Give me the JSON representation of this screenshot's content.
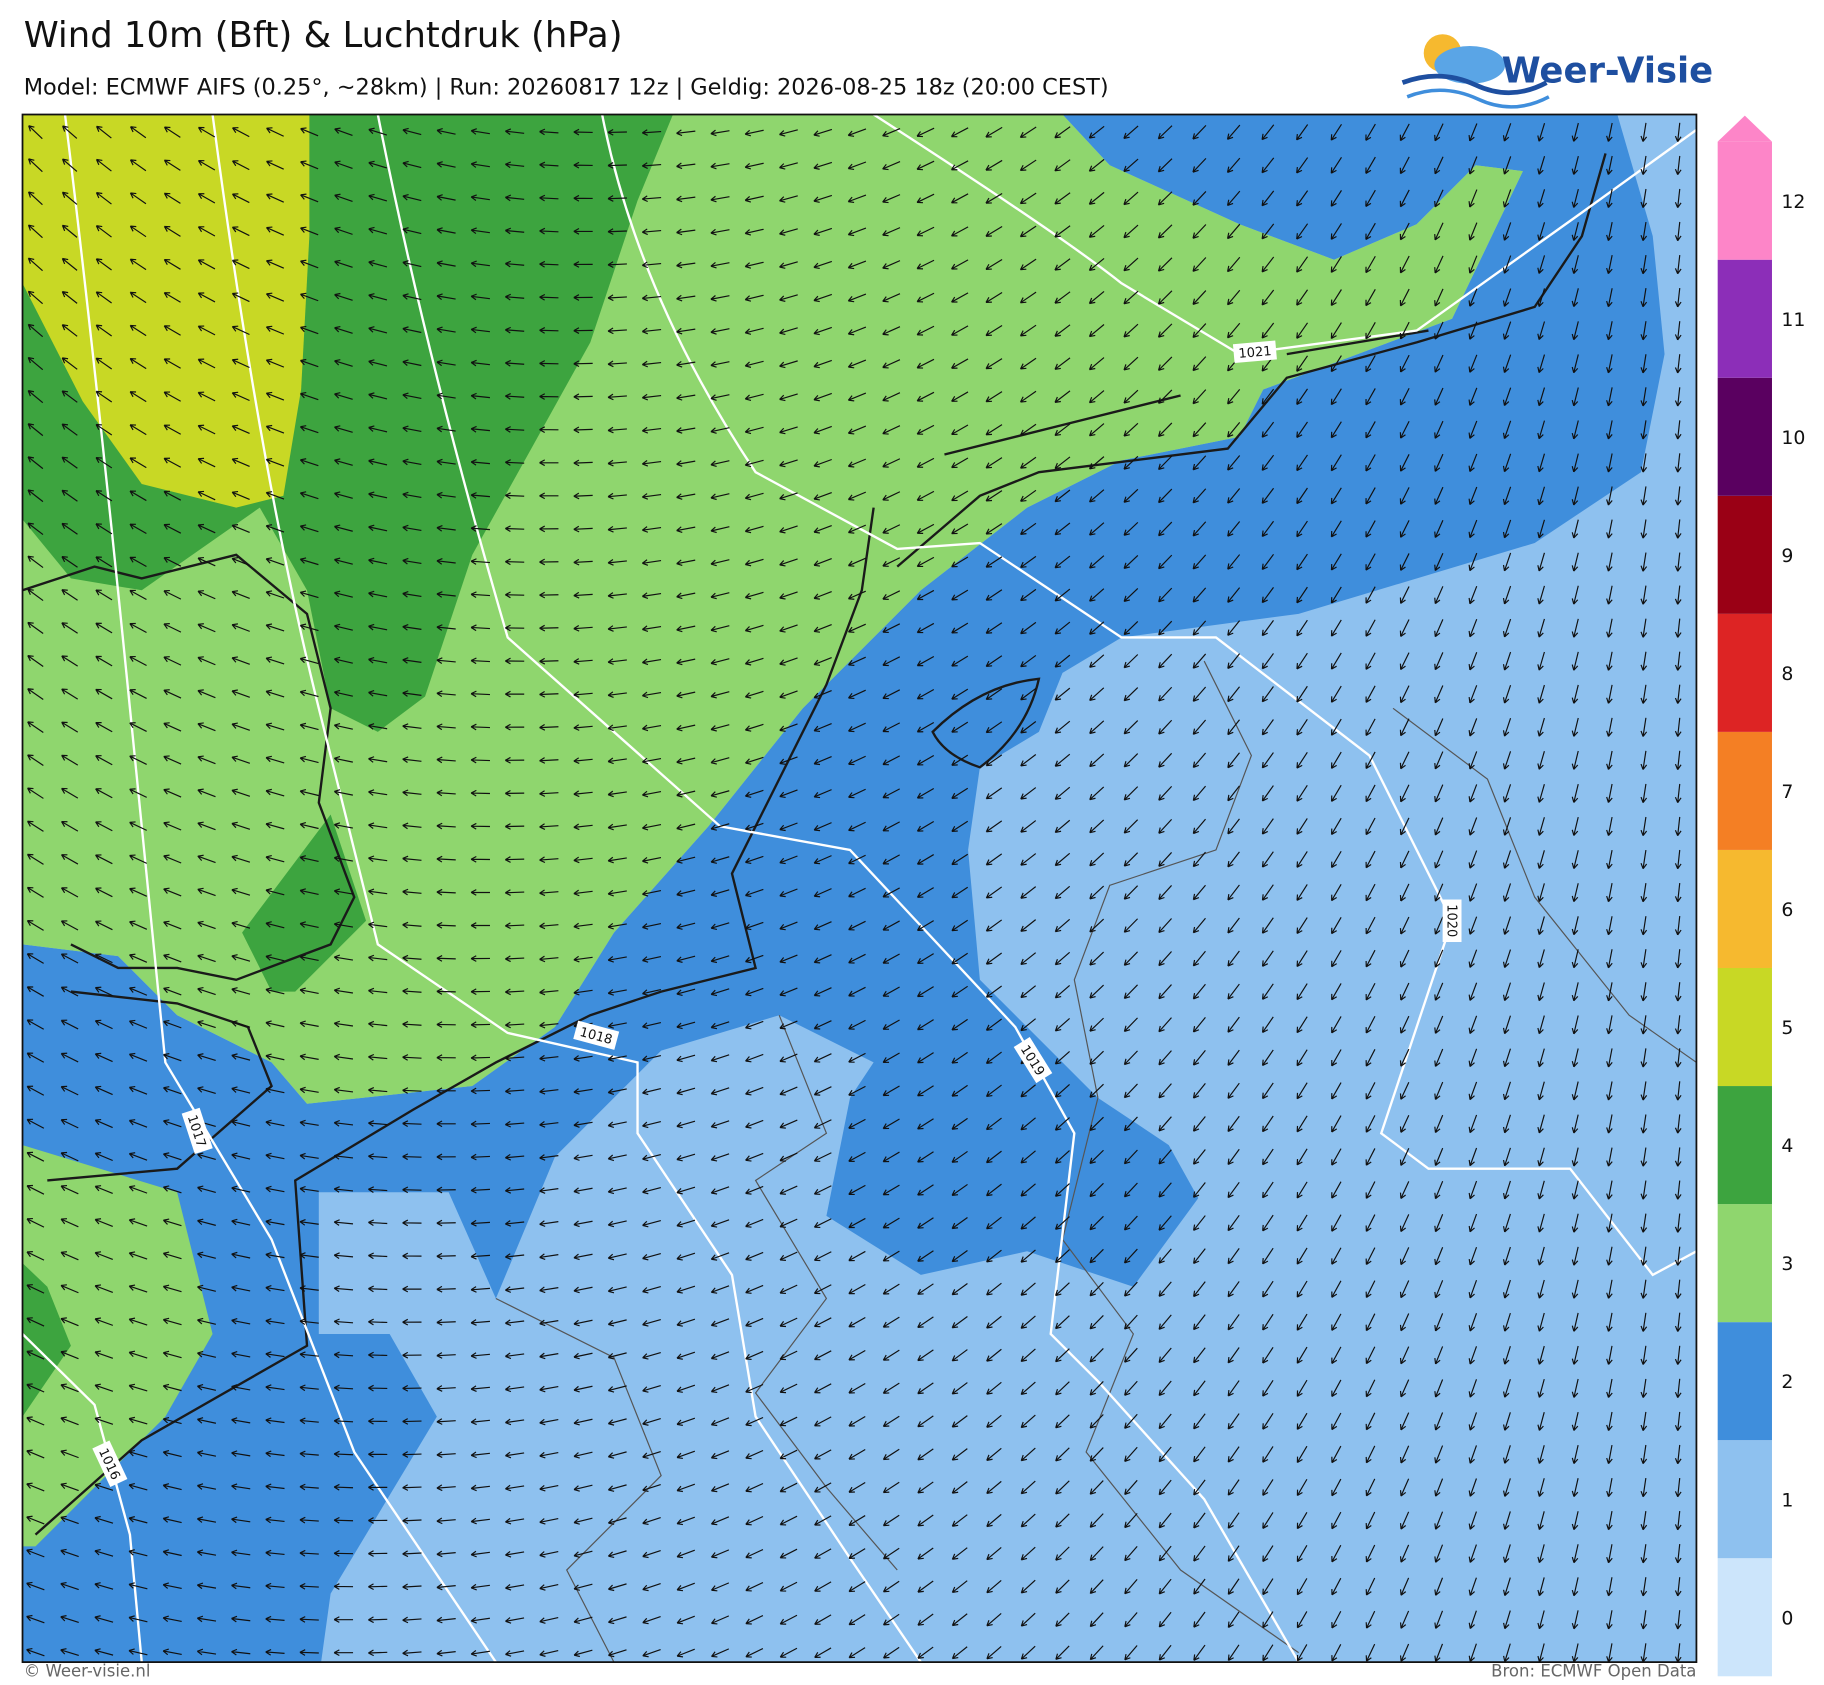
{
  "header": {
    "title": "Wind 10m (Bft) & Luchtdruk (hPa)",
    "subtitle": "Model: ECMWF AIFS (0.25°, ~28km)  |  Run: 20260817 12z  |  Geldig: 2026-08-25 18z (20:00 CEST)"
  },
  "logo": {
    "text": "Weer-Visie"
  },
  "map": {
    "isobars": [
      {
        "label": "1021"
      },
      {
        "label": "1020"
      },
      {
        "label": "1019"
      },
      {
        "label": "1018"
      },
      {
        "label": "1017"
      },
      {
        "label": "1016"
      }
    ]
  },
  "legend": {
    "levels": [
      {
        "label": "0",
        "color": "#cce5fb"
      },
      {
        "label": "1",
        "color": "#8ec1ef"
      },
      {
        "label": "2",
        "color": "#3f8edc"
      },
      {
        "label": "3",
        "color": "#8fd66e"
      },
      {
        "label": "4",
        "color": "#3da43f"
      },
      {
        "label": "5",
        "color": "#c8d825"
      },
      {
        "label": "6",
        "color": "#f6b92f"
      },
      {
        "label": "7",
        "color": "#f47f24"
      },
      {
        "label": "8",
        "color": "#dd2424"
      },
      {
        "label": "9",
        "color": "#9a0015"
      },
      {
        "label": "10",
        "color": "#5a0060"
      },
      {
        "label": "11",
        "color": "#8c2eb8"
      },
      {
        "label": "12",
        "color": "#fd85c8"
      }
    ]
  },
  "footer": {
    "left": "© Weer-visie.nl",
    "right": "Bron: ECMWF Open Data"
  }
}
